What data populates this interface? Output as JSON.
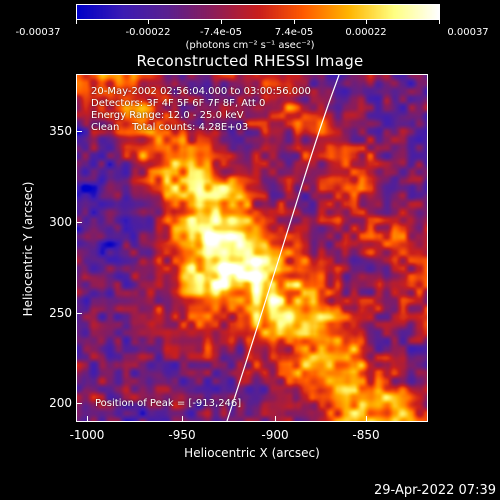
{
  "colorbar": {
    "ticks": [
      "-0.00037",
      "-0.00022",
      "-7.4e-05",
      "7.4e-05",
      "0.00022",
      "0.00037"
    ],
    "unit": "(photons cm⁻² s⁻¹ asec⁻²)",
    "range": [
      -0.00037,
      0.00037
    ],
    "colormap": [
      "#0000c8",
      "#3c1cb4",
      "#5a2090",
      "#8c1c5a",
      "#c81e1e",
      "#ff5a00",
      "#ffb400",
      "#ffff80",
      "#ffffff"
    ]
  },
  "title": "Reconstructed RHESSI Image",
  "annotations": {
    "line1": "20-May-2002 02:56:04.000 to 03:00:56.000",
    "line2": "Detectors: 3F 4F 5F 6F 7F 8F, Att 0",
    "line3": "Energy Range: 12.0 - 25.0 keV",
    "line4": "Clean    Total counts: 4.28E+03",
    "peak": "Position of Peak = [-913,246]"
  },
  "axes": {
    "xlabel": "Heliocentric X (arcsec)",
    "ylabel": "Heliocentric Y (arcsec)",
    "xlim": [
      -1015,
      -815
    ],
    "ylim": [
      190,
      380
    ],
    "xticks": [
      "-1000",
      "-950",
      "-900",
      "-850"
    ],
    "yticks": [
      "200",
      "250",
      "300",
      "350"
    ]
  },
  "timestamp": "29-Apr-2022 07:39"
}
